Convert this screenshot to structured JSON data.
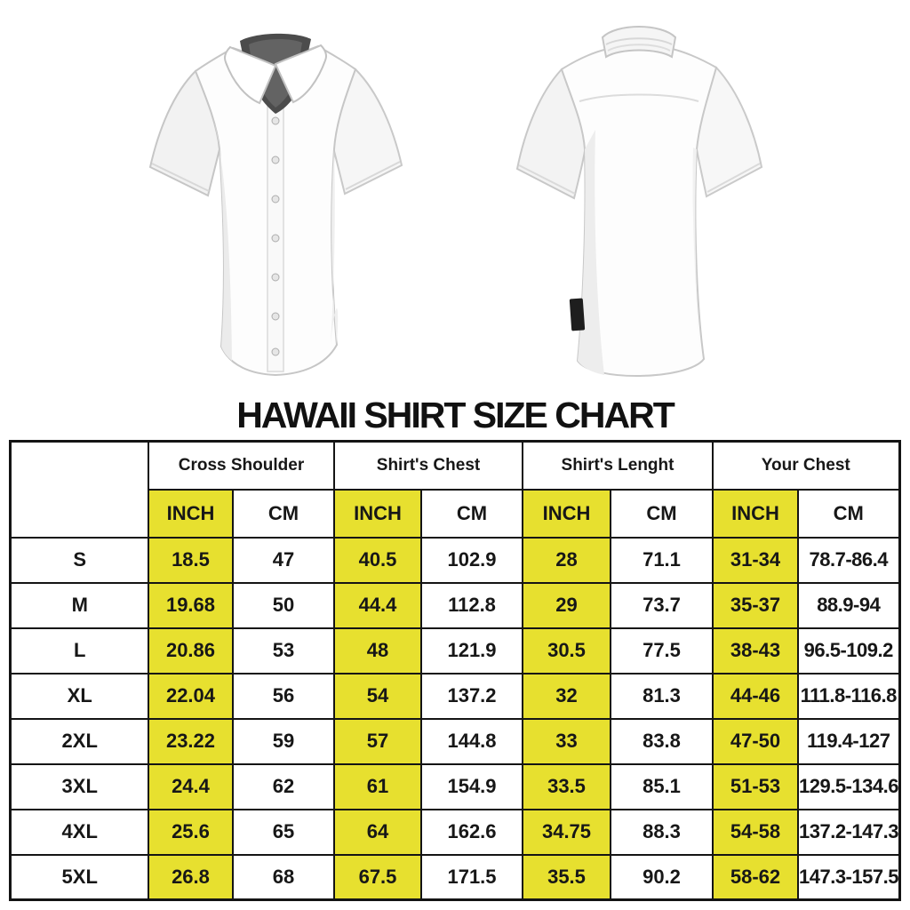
{
  "title": "HAWAII SHIRT SIZE CHART",
  "shirts": {
    "front_label": "white short-sleeve shirt, front view",
    "back_label": "white short-sleeve shirt, back view"
  },
  "colors": {
    "highlight_yellow": "#e7e02f",
    "table_border": "#141414",
    "text": "#171717"
  },
  "chart_data": {
    "type": "table",
    "title": "HAWAII SHIRT SIZE CHART",
    "column_groups": [
      "Cross Shoulder",
      "Shirt's Chest",
      "Shirt's Lenght",
      "Your Chest"
    ],
    "unit_headers": [
      "INCH",
      "CM",
      "INCH",
      "CM",
      "INCH",
      "CM",
      "INCH",
      "CM"
    ],
    "highlighted_unit": "INCH",
    "rows": [
      {
        "size": "S",
        "values": [
          "18.5",
          "47",
          "40.5",
          "102.9",
          "28",
          "71.1",
          "31-34",
          "78.7-86.4"
        ]
      },
      {
        "size": "M",
        "values": [
          "19.68",
          "50",
          "44.4",
          "112.8",
          "29",
          "73.7",
          "35-37",
          "88.9-94"
        ]
      },
      {
        "size": "L",
        "values": [
          "20.86",
          "53",
          "48",
          "121.9",
          "30.5",
          "77.5",
          "38-43",
          "96.5-109.2"
        ]
      },
      {
        "size": "XL",
        "values": [
          "22.04",
          "56",
          "54",
          "137.2",
          "32",
          "81.3",
          "44-46",
          "111.8-116.8"
        ]
      },
      {
        "size": "2XL",
        "values": [
          "23.22",
          "59",
          "57",
          "144.8",
          "33",
          "83.8",
          "47-50",
          "119.4-127"
        ]
      },
      {
        "size": "3XL",
        "values": [
          "24.4",
          "62",
          "61",
          "154.9",
          "33.5",
          "85.1",
          "51-53",
          "129.5-134.6"
        ]
      },
      {
        "size": "4XL",
        "values": [
          "25.6",
          "65",
          "64",
          "162.6",
          "34.75",
          "88.3",
          "54-58",
          "137.2-147.3"
        ]
      },
      {
        "size": "5XL",
        "values": [
          "26.8",
          "68",
          "67.5",
          "171.5",
          "35.5",
          "90.2",
          "58-62",
          "147.3-157.5"
        ]
      }
    ]
  }
}
